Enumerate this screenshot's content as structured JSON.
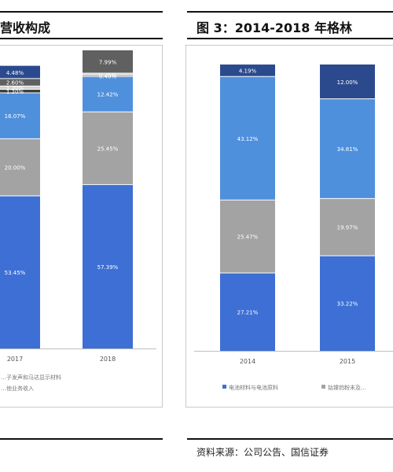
{
  "left": {
    "title": "营收构成",
    "legend_partial": [
      "…子发声和马达显示材料",
      "…他业务收入"
    ],
    "chart_data": {
      "type": "bar",
      "stacked": true,
      "categories": [
        "2017",
        "2018"
      ],
      "series": [
        {
          "values": [
            53.45,
            57.39
          ],
          "color": "#3d6fd4"
        },
        {
          "values": [
            20.0,
            25.45
          ],
          "color": "#a3a3a3"
        },
        {
          "values": [
            16.07,
            12.42
          ],
          "color": "#4f90dd"
        },
        {
          "values": [
            1.2,
            0.4
          ],
          "color": "#3a3a3a"
        },
        {
          "values": [
            1.2,
            0.76
          ],
          "color": "#d2d2d2"
        },
        {
          "values": [
            2.6,
            7.99
          ],
          "color": "#606060"
        },
        {
          "values": [
            4.48,
            0.0
          ],
          "color": "#2b4a8e"
        }
      ],
      "labels": [
        [
          "53.45%",
          "20.00%",
          "16.07%",
          "1.20%",
          "1.20%",
          "2.60%",
          "4.48%"
        ],
        [
          "57.39%",
          "25.45%",
          "12.42%",
          "0.40%",
          "0.76%",
          "7.99%",
          ""
        ]
      ],
      "ylim": [
        0,
        100
      ]
    }
  },
  "right": {
    "title": "图 3：2014-2018 年格林",
    "legend": [
      "电池材料与电池原料",
      "钴镍钨粉末及…"
    ],
    "chart_data": {
      "type": "bar",
      "stacked": true,
      "categories": [
        "2014",
        "2015"
      ],
      "series": [
        {
          "name": "电池材料与电池原料",
          "values": [
            27.21,
            33.22
          ],
          "color": "#3d6fd4"
        },
        {
          "values": [
            25.47,
            19.97
          ],
          "color": "#a3a3a3"
        },
        {
          "values": [
            43.12,
            34.81
          ],
          "color": "#4f90dd"
        },
        {
          "values": [
            4.19,
            12.0
          ],
          "color": "#2b4a8e"
        }
      ],
      "labels": [
        [
          "27.21%",
          "25.47%",
          "43.12%",
          "4.19%"
        ],
        [
          "33.22%",
          "19.97%",
          "34.81%",
          "12.00%"
        ]
      ],
      "ylim": [
        0,
        100
      ]
    }
  },
  "source": "资料来源：公司公告、国信证券"
}
